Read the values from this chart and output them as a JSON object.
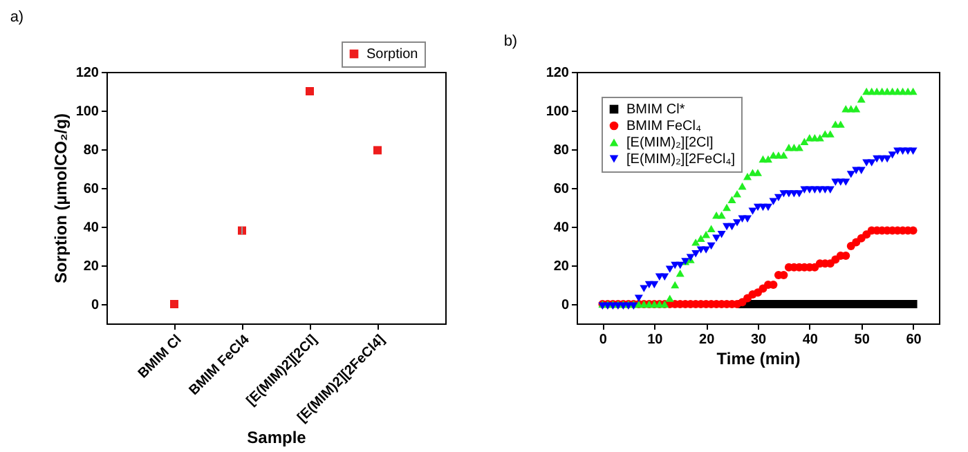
{
  "chart_data": [
    {
      "type": "scatter",
      "title": "a)",
      "xlabel": "Sample",
      "ylabel": "Sorption (µmolCO₂/g)",
      "categories": [
        "BMIM Cl",
        "BMIM FeCl4",
        "[E(MIM)2][2Cl]",
        "[E(MIM)2][2FeCl4]"
      ],
      "ylim": [
        -10,
        120
      ],
      "yticks": [
        0,
        20,
        40,
        60,
        80,
        100,
        120
      ],
      "legend": "top right",
      "grid": false,
      "marker": "square",
      "series": [
        {
          "name": "Sorption",
          "color": "#ee1c1c",
          "values": [
            0,
            38,
            110,
            79.5
          ],
          "errors": [
            null,
            2,
            null,
            null
          ]
        }
      ]
    },
    {
      "type": "scatter",
      "title": "b)",
      "xlabel": "Time (min)",
      "xlim": [
        -5,
        65
      ],
      "xticks": [
        0,
        10,
        20,
        30,
        40,
        50,
        60
      ],
      "ylim": [
        -10,
        120
      ],
      "yticks": [
        0,
        20,
        40,
        60,
        80,
        100,
        120
      ],
      "legend": "top left",
      "grid": false,
      "x": [
        0,
        1,
        2,
        3,
        4,
        5,
        6,
        7,
        8,
        9,
        10,
        11,
        12,
        13,
        14,
        15,
        16,
        17,
        18,
        19,
        20,
        21,
        22,
        23,
        24,
        25,
        26,
        27,
        28,
        29,
        30,
        31,
        32,
        33,
        34,
        35,
        36,
        37,
        38,
        39,
        40,
        41,
        42,
        43,
        44,
        45,
        46,
        47,
        48,
        49,
        50,
        51,
        52,
        53,
        54,
        55,
        56,
        57,
        58,
        59,
        60
      ],
      "series": [
        {
          "name": "BMIM Cl*",
          "color": "#000000",
          "marker": "square",
          "values": [
            null,
            null,
            null,
            null,
            null,
            null,
            null,
            null,
            null,
            null,
            null,
            null,
            null,
            null,
            null,
            null,
            null,
            null,
            null,
            null,
            null,
            null,
            null,
            null,
            null,
            null,
            null,
            0,
            0,
            0,
            0,
            0,
            0,
            0,
            0,
            0,
            0,
            0,
            0,
            0,
            0,
            0,
            0,
            0,
            0,
            0,
            0,
            0,
            0,
            0,
            0,
            0,
            0,
            0,
            0,
            0,
            0,
            0,
            0,
            0,
            0
          ]
        },
        {
          "name": "BMIM FeCl₄",
          "color": "#ff0000",
          "marker": "circle",
          "values": [
            0,
            0,
            0,
            0,
            0,
            0,
            0,
            0,
            0,
            0,
            0,
            0,
            0,
            0,
            0,
            0,
            0,
            0,
            0,
            0,
            0,
            0,
            0,
            0,
            0,
            0,
            0,
            1,
            3,
            5,
            6,
            8,
            10,
            10,
            15,
            15,
            19,
            19,
            19,
            19,
            19,
            19,
            21,
            21,
            21,
            23,
            25,
            25,
            30,
            32,
            34,
            36,
            38,
            38,
            38,
            38,
            38,
            38,
            38,
            38,
            38
          ]
        },
        {
          "name": "[E(MIM)₂][2Cl]",
          "color": "#22ee22",
          "marker": "triangle",
          "values": [
            0,
            0,
            0,
            0,
            0,
            0,
            0,
            0,
            0,
            0,
            0,
            0,
            0,
            3,
            10,
            16,
            22,
            23,
            32,
            34,
            36,
            39,
            46,
            46,
            50,
            54,
            57,
            61,
            66,
            68,
            68,
            75,
            75,
            77,
            77,
            77,
            81,
            81,
            81,
            84,
            86,
            86,
            86,
            88,
            88,
            93,
            93,
            101,
            101,
            101,
            106,
            110,
            110,
            110,
            110,
            110,
            110,
            110,
            110,
            110,
            110
          ]
        },
        {
          "name": "[E(MIM)₂][2FeCl₄]",
          "color": "#0000ff",
          "marker": "triangle-down",
          "values": [
            -1,
            -1,
            -1,
            -1,
            -1,
            -1,
            -1,
            3,
            8,
            10,
            10,
            14,
            14,
            18,
            20,
            20,
            22,
            24,
            26,
            28,
            28,
            30,
            34,
            36,
            40,
            40,
            42,
            44,
            44,
            48,
            50,
            50,
            50,
            53,
            55,
            57,
            57,
            57,
            57,
            59,
            59,
            59,
            59,
            59,
            59,
            63,
            63,
            63,
            67,
            69,
            69,
            73,
            73,
            75,
            75,
            75,
            77,
            79,
            79,
            79,
            79
          ]
        }
      ]
    }
  ]
}
